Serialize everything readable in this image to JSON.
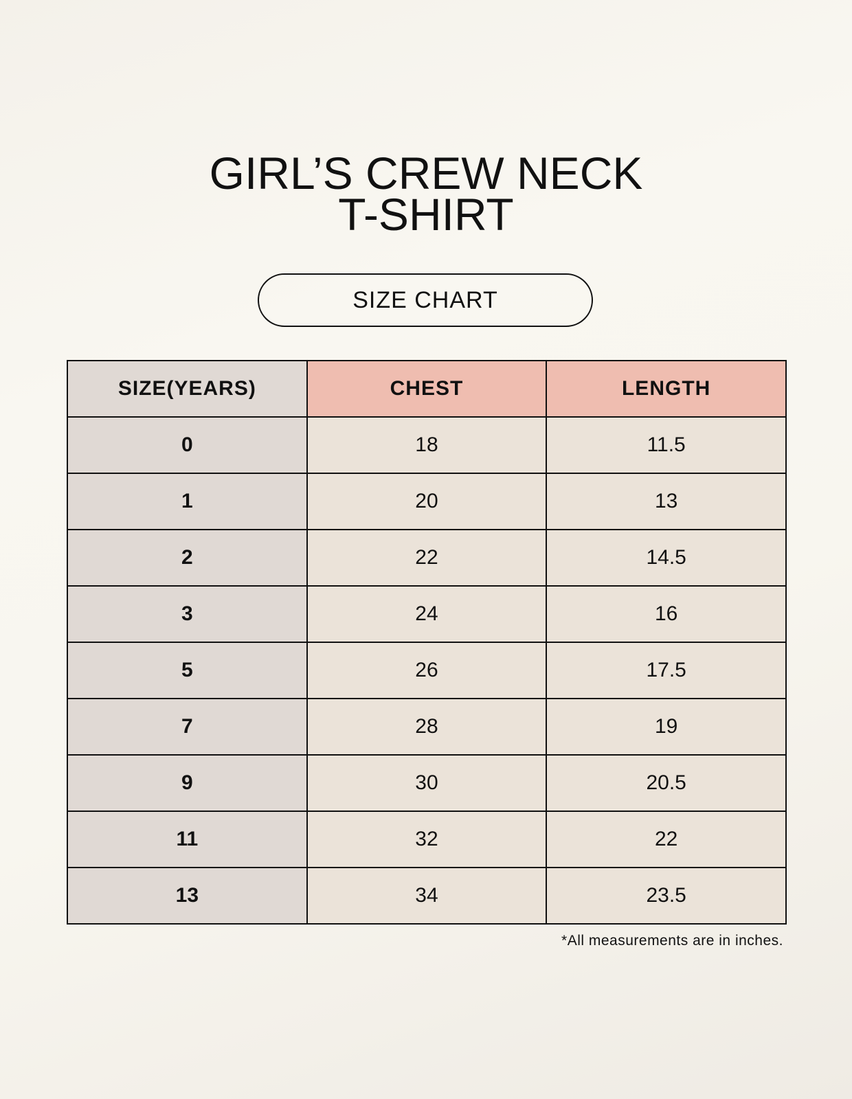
{
  "title_line1": "GIRL’S CREW NECK",
  "title_line2": "T-SHIRT",
  "badge": "SIZE CHART",
  "table": {
    "headers": [
      "SIZE(YEARS)",
      "CHEST",
      "LENGTH"
    ],
    "rows": [
      [
        "0",
        "18",
        "11.5"
      ],
      [
        "1",
        "20",
        "13"
      ],
      [
        "2",
        "22",
        "14.5"
      ],
      [
        "3",
        "24",
        "16"
      ],
      [
        "5",
        "26",
        "17.5"
      ],
      [
        "7",
        "28",
        "19"
      ],
      [
        "9",
        "30",
        "20.5"
      ],
      [
        "11",
        "32",
        "22"
      ],
      [
        "13",
        "34",
        "23.5"
      ]
    ]
  },
  "footnote": "*All measurements are in inches.",
  "colors": {
    "size_column": "#e0d9d4",
    "header_accent": "#efbdb0",
    "cell": "#ebe3d9",
    "background": "#f8f6ef"
  }
}
